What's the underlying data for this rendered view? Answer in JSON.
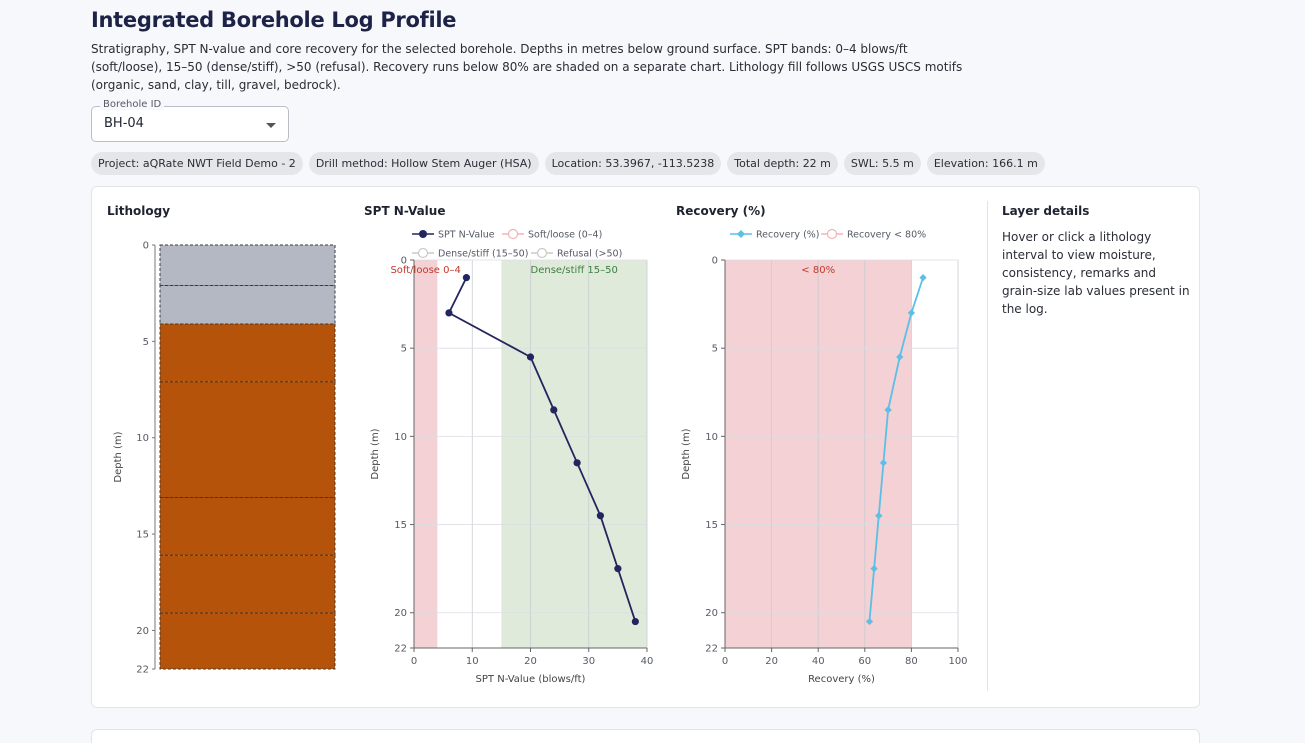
{
  "page": {
    "title": "Integrated Borehole Log Profile",
    "description": "Stratigraphy, SPT N-value and core recovery for the selected borehole. Depths in metres below ground surface. SPT bands: 0–4 blows/ft (soft/loose), 15–50 (dense/stiff), >50 (refusal). Recovery runs below 80% are shaded on a separate chart. Lithology fill follows USGS USCS motifs (organic, sand, clay, till, gravel, bedrock)."
  },
  "borehole_select": {
    "legend": "Borehole ID",
    "value": "BH-04"
  },
  "chips": [
    "Project: aQRate NWT Field Demo - 2",
    "Drill method: Hollow Stem Auger (HSA)",
    "Location: 53.3967, -113.5238",
    "Total depth: 22 m",
    "SWL: 5.5 m",
    "Elevation: 166.1 m"
  ],
  "details": {
    "title": "Layer details",
    "text": "Hover or click a lithology interval to view moisture, consistency, remarks and grain-size lab values present in the log."
  },
  "colors": {
    "lith_grey": "#b4b8c2",
    "lith_brown": "#b5530b",
    "spt_line": "#23255e",
    "recovery_line": "#5bbfe6",
    "band_soft": "#f3d1d4",
    "band_dense": "#dfeadb",
    "band_low_recovery": "#f3d1d4"
  },
  "chart_data": [
    {
      "type": "bar",
      "title": "Lithology",
      "ylabel": "Depth (m)",
      "ylim": [
        22,
        0
      ],
      "yticks": [
        0,
        5,
        10,
        15,
        20,
        22
      ],
      "intervals": [
        {
          "top": 0,
          "bottom": 2.1,
          "color": "#b4b8c2"
        },
        {
          "top": 2.1,
          "bottom": 4.1,
          "color": "#b4b8c2"
        },
        {
          "top": 4.1,
          "bottom": 7.1,
          "color": "#b5530b"
        },
        {
          "top": 7.1,
          "bottom": 13.1,
          "color": "#b5530b"
        },
        {
          "top": 13.1,
          "bottom": 16.1,
          "color": "#b5530b"
        },
        {
          "top": 16.1,
          "bottom": 19.1,
          "color": "#b5530b"
        },
        {
          "top": 19.1,
          "bottom": 22,
          "color": "#b5530b"
        }
      ]
    },
    {
      "type": "line",
      "title": "SPT N-Value",
      "xlabel": "SPT N-Value (blows/ft)",
      "ylabel": "Depth (m)",
      "xlim": [
        0,
        40
      ],
      "ylim": [
        22,
        0
      ],
      "xticks": [
        0,
        10,
        20,
        30,
        40
      ],
      "yticks": [
        0,
        5,
        10,
        15,
        20,
        22
      ],
      "legend_placement": "top",
      "legend": [
        "SPT N-Value",
        "Soft/loose (0–4)",
        "Dense/stiff (15–50)",
        "Refusal (>50)"
      ],
      "bands": [
        {
          "from": 0,
          "to": 4,
          "label": "Soft/loose 0–4"
        },
        {
          "from": 15,
          "to": 50,
          "label": "Dense/stiff 15–50"
        }
      ],
      "series": [
        {
          "name": "SPT N-Value",
          "points": [
            {
              "x": 9,
              "y": 1
            },
            {
              "x": 6,
              "y": 3
            },
            {
              "x": 20,
              "y": 5.5
            },
            {
              "x": 24,
              "y": 8.5
            },
            {
              "x": 28,
              "y": 11.5
            },
            {
              "x": 32,
              "y": 14.5
            },
            {
              "x": 35,
              "y": 17.5
            },
            {
              "x": 38,
              "y": 20.5
            }
          ]
        }
      ]
    },
    {
      "type": "line",
      "title": "Recovery (%)",
      "xlabel": "Recovery (%)",
      "ylabel": "Depth (m)",
      "xlim": [
        0,
        100
      ],
      "ylim": [
        22,
        0
      ],
      "xticks": [
        0,
        20,
        40,
        60,
        80,
        100
      ],
      "yticks": [
        0,
        5,
        10,
        15,
        20,
        22
      ],
      "legend_placement": "top",
      "legend": [
        "Recovery (%)",
        "Recovery < 80%"
      ],
      "bands": [
        {
          "from": 0,
          "to": 80,
          "label": "< 80%"
        }
      ],
      "series": [
        {
          "name": "Recovery (%)",
          "points": [
            {
              "x": 85,
              "y": 1
            },
            {
              "x": 80,
              "y": 3
            },
            {
              "x": 75,
              "y": 5.5
            },
            {
              "x": 70,
              "y": 8.5
            },
            {
              "x": 68,
              "y": 11.5
            },
            {
              "x": 66,
              "y": 14.5
            },
            {
              "x": 64,
              "y": 17.5
            },
            {
              "x": 62,
              "y": 20.5
            }
          ]
        }
      ]
    }
  ]
}
